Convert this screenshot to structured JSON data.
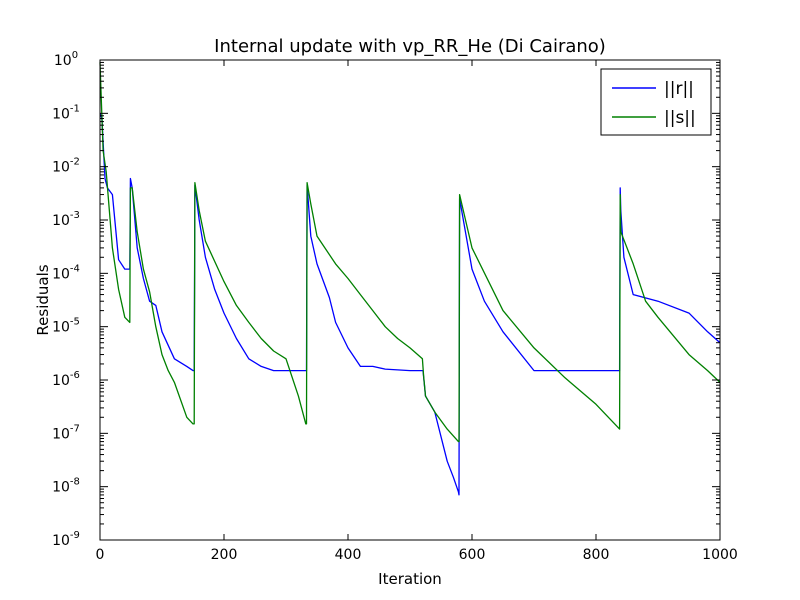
{
  "chart_data": {
    "type": "line",
    "title": "Internal update with vp_RR_He (Di Cairano)",
    "xlabel": "Iteration",
    "ylabel": "Residuals",
    "xlim": [
      0,
      1000
    ],
    "ylim": [
      1e-09,
      1
    ],
    "yscale": "log",
    "grid": false,
    "legend_position": "top-right",
    "x_ticks": [
      "0",
      "200",
      "400",
      "600",
      "800",
      "1000"
    ],
    "y_ticks": [
      {
        "base": "10",
        "exp": "0"
      },
      {
        "base": "10",
        "exp": "-1"
      },
      {
        "base": "10",
        "exp": "-2"
      },
      {
        "base": "10",
        "exp": "-3"
      },
      {
        "base": "10",
        "exp": "-4"
      },
      {
        "base": "10",
        "exp": "-5"
      },
      {
        "base": "10",
        "exp": "-6"
      },
      {
        "base": "10",
        "exp": "-7"
      },
      {
        "base": "10",
        "exp": "-8"
      },
      {
        "base": "10",
        "exp": "-9"
      }
    ],
    "series": [
      {
        "name": "||r||",
        "color": "#0000ff",
        "x": [
          0,
          3,
          8,
          12,
          20,
          30,
          40,
          48,
          49,
          52,
          60,
          70,
          80,
          90,
          100,
          120,
          140,
          150,
          152,
          153,
          160,
          170,
          185,
          200,
          220,
          240,
          260,
          280,
          300,
          332,
          333,
          334,
          340,
          350,
          370,
          380,
          400,
          420,
          440,
          460,
          500,
          520,
          521,
          525,
          540,
          560,
          570,
          578,
          579,
          580,
          600,
          620,
          650,
          700,
          750,
          800,
          838,
          839,
          840,
          845,
          860,
          900,
          950,
          980,
          1000
        ],
        "y": [
          0.1,
          0.08,
          0.006,
          0.004,
          0.003,
          0.00018,
          0.00012,
          0.00012,
          0.006,
          0.004,
          0.0003,
          8e-05,
          3e-05,
          2.5e-05,
          8e-06,
          2.5e-06,
          1.8e-06,
          1.5e-06,
          1.5e-06,
          0.0045,
          0.001,
          0.0002,
          5e-05,
          1.8e-05,
          6e-06,
          2.5e-06,
          1.8e-06,
          1.5e-06,
          1.5e-06,
          1.5e-06,
          1.5e-06,
          0.0045,
          0.0005,
          0.00015,
          3.5e-05,
          1.2e-05,
          4e-06,
          1.8e-06,
          1.8e-06,
          1.6e-06,
          1.5e-06,
          1.5e-06,
          1.5e-06,
          5e-07,
          2.5e-07,
          3e-08,
          1.5e-08,
          8e-09,
          7e-09,
          0.0025,
          0.00012,
          3e-05,
          8e-06,
          1.5e-06,
          1.5e-06,
          1.5e-06,
          1.5e-06,
          0.004,
          0.0015,
          0.0002,
          4e-05,
          3e-05,
          1.8e-05,
          8e-06,
          5e-06
        ]
      },
      {
        "name": "||s||",
        "color": "#008000",
        "x": [
          0,
          5,
          10,
          20,
          30,
          40,
          48,
          49,
          52,
          60,
          70,
          80,
          90,
          100,
          110,
          120,
          140,
          150,
          152,
          153,
          160,
          170,
          200,
          220,
          240,
          260,
          280,
          300,
          320,
          332,
          333,
          334,
          340,
          350,
          380,
          400,
          420,
          440,
          460,
          480,
          500,
          520,
          522,
          525,
          540,
          560,
          578,
          579,
          580,
          600,
          650,
          700,
          750,
          800,
          838,
          839,
          840,
          860,
          880,
          900,
          950,
          980,
          1000
        ],
        "y": [
          0.9,
          0.02,
          0.008,
          0.0003,
          5e-05,
          1.5e-05,
          1.2e-05,
          0.004,
          0.004,
          0.0006,
          0.00012,
          4.5e-05,
          1e-05,
          3e-06,
          1.5e-06,
          9e-07,
          2e-07,
          1.5e-07,
          1.5e-07,
          0.005,
          0.0015,
          0.0004,
          7e-05,
          2.5e-05,
          1.2e-05,
          6e-06,
          3.5e-06,
          2.5e-06,
          5e-07,
          1.5e-07,
          1.5e-07,
          0.005,
          0.002,
          0.0005,
          0.00015,
          8e-05,
          4e-05,
          2e-05,
          1e-05,
          6e-06,
          4e-06,
          2.5e-06,
          1.2e-06,
          5e-07,
          2.5e-07,
          1.2e-07,
          7e-08,
          7e-08,
          0.003,
          0.0003,
          2e-05,
          4e-06,
          1.1e-06,
          3.5e-07,
          1.2e-07,
          0.003,
          0.0006,
          0.00015,
          3e-05,
          1.5e-05,
          3e-06,
          1.5e-06,
          9e-07
        ]
      }
    ]
  }
}
